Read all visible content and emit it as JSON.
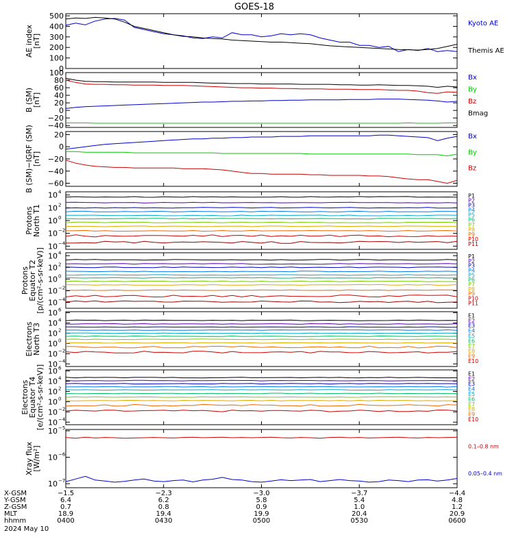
{
  "title": "GOES-18",
  "chart_data": [
    {
      "type": "line",
      "ylabel": [
        "AE index",
        "[nT]"
      ],
      "yticks": [
        "500",
        "400",
        "300",
        "200",
        "100",
        "0"
      ],
      "ylim": [
        0,
        520
      ],
      "x": [
        "0400",
        "0403",
        "0406",
        "0409",
        "0412",
        "0415",
        "0418",
        "0421",
        "0424",
        "0427",
        "0430",
        "0433",
        "0436",
        "0439",
        "0442",
        "0445",
        "0448",
        "0451",
        "0454",
        "0457",
        "0500",
        "0503",
        "0506",
        "0509",
        "0512",
        "0515",
        "0518",
        "0521",
        "0524",
        "0527",
        "0530",
        "0533",
        "0536",
        "0539",
        "0542",
        "0545",
        "0548",
        "0551",
        "0554",
        "0557",
        "0600"
      ],
      "series": [
        {
          "name": "Kyoto AE",
          "color": "#0000cc",
          "values": [
            410,
            430,
            415,
            450,
            470,
            475,
            460,
            390,
            370,
            350,
            330,
            320,
            310,
            290,
            285,
            300,
            290,
            340,
            320,
            320,
            300,
            310,
            330,
            320,
            330,
            320,
            290,
            270,
            250,
            250,
            220,
            220,
            200,
            210,
            160,
            180,
            170,
            190,
            160,
            170,
            160
          ]
        },
        {
          "name": "Themis AE",
          "color": "#000000",
          "values": [
            470,
            480,
            475,
            485,
            480,
            470,
            440,
            400,
            380,
            360,
            340,
            320,
            305,
            300,
            290,
            285,
            280,
            270,
            265,
            260,
            255,
            250,
            250,
            245,
            240,
            235,
            225,
            215,
            210,
            205,
            200,
            195,
            190,
            185,
            180,
            178,
            175,
            180,
            190,
            210,
            230
          ]
        }
      ]
    },
    {
      "type": "line",
      "ylabel": [
        "B (SM)",
        "[nT]"
      ],
      "yticks": [
        "100",
        "80",
        "60",
        "40",
        "20",
        "0",
        "−20",
        "−40"
      ],
      "ylim": [
        -45,
        100
      ],
      "series": [
        {
          "name": "Bx",
          "color": "#0000cc",
          "values": [
            5,
            8,
            10,
            11,
            12,
            13,
            14,
            15,
            16,
            17,
            18,
            19,
            20,
            21,
            22,
            22,
            23,
            24,
            24,
            25,
            25,
            26,
            26,
            27,
            27,
            28,
            28,
            28,
            28,
            29,
            29,
            29,
            30,
            30,
            30,
            29,
            28,
            27,
            25,
            22,
            24
          ]
        },
        {
          "name": "By",
          "color": "#00cc00",
          "values": [
            -33,
            -33,
            -33,
            -34,
            -34,
            -34,
            -34,
            -34,
            -34,
            -34,
            -34,
            -34,
            -34,
            -34,
            -34,
            -34,
            -34,
            -34,
            -34,
            -34,
            -34,
            -34,
            -34,
            -34,
            -34,
            -34,
            -34,
            -34,
            -34,
            -34,
            -34,
            -34,
            -34,
            -34,
            -34,
            -33,
            -34,
            -34,
            -34,
            -33,
            -33
          ]
        },
        {
          "name": "Bz",
          "color": "#cc0000",
          "values": [
            80,
            74,
            70,
            69,
            69,
            68,
            68,
            67,
            67,
            67,
            66,
            66,
            66,
            65,
            64,
            63,
            62,
            61,
            60,
            60,
            59,
            59,
            58,
            58,
            57,
            57,
            57,
            56,
            56,
            56,
            55,
            55,
            55,
            54,
            53,
            53,
            51,
            47,
            45,
            49,
            48
          ]
        },
        {
          "name": "Bmag",
          "color": "#000000",
          "values": [
            85,
            80,
            77,
            76,
            76,
            75,
            75,
            75,
            75,
            75,
            74,
            74,
            74,
            74,
            73,
            72,
            72,
            71,
            71,
            71,
            70,
            70,
            70,
            70,
            69,
            69,
            69,
            69,
            68,
            68,
            67,
            67,
            68,
            67,
            66,
            66,
            65,
            64,
            61,
            64,
            62
          ]
        }
      ]
    },
    {
      "type": "line",
      "ylabel": [
        "B (SM)−IGRF (SM)",
        "[nT]"
      ],
      "yticks": [
        "20",
        "0",
        "−20",
        "−40",
        "−60"
      ],
      "ylim": [
        -65,
        25
      ],
      "series": [
        {
          "name": "Bx",
          "color": "#0000cc",
          "values": [
            -4,
            -2,
            0,
            2,
            4,
            5,
            6,
            7,
            8,
            9,
            10,
            11,
            12,
            13,
            13,
            14,
            14,
            15,
            15,
            16,
            16,
            16,
            17,
            17,
            17,
            18,
            18,
            18,
            18,
            18,
            18,
            18,
            19,
            19,
            18,
            17,
            16,
            15,
            10,
            14,
            17
          ]
        },
        {
          "name": "By",
          "color": "#00cc00",
          "values": [
            -8,
            -8,
            -9,
            -9,
            -9,
            -9,
            -9,
            -10,
            -10,
            -10,
            -10,
            -10,
            -10,
            -10,
            -10,
            -10,
            -11,
            -11,
            -11,
            -11,
            -11,
            -11,
            -11,
            -11,
            -11,
            -12,
            -12,
            -12,
            -12,
            -12,
            -12,
            -12,
            -12,
            -12,
            -12,
            -12,
            -13,
            -13,
            -13,
            -15,
            -12
          ]
        },
        {
          "name": "Bz",
          "color": "#cc0000",
          "values": [
            -22,
            -27,
            -30,
            -32,
            -33,
            -34,
            -34,
            -35,
            -35,
            -35,
            -35,
            -35,
            -36,
            -36,
            -36,
            -37,
            -38,
            -40,
            -42,
            -44,
            -44,
            -45,
            -45,
            -45,
            -45,
            -46,
            -46,
            -47,
            -47,
            -47,
            -47,
            -48,
            -48,
            -49,
            -51,
            -53,
            -54,
            -54,
            -57,
            -60,
            -55
          ]
        }
      ]
    },
    {
      "type": "line",
      "log": true,
      "ylabel": [
        "Protons",
        "North T1"
      ],
      "yticks": [
        [
          4,
          "10"
        ],
        [
          2,
          "10"
        ],
        [
          0,
          "10"
        ],
        [
          -2,
          "10"
        ],
        [
          -4,
          "10"
        ]
      ],
      "ylim": [
        -4.5,
        4.5
      ],
      "series": [
        {
          "name": "P1",
          "color": "#000000",
          "level": 3.7
        },
        {
          "name": "P2",
          "color": "#5500aa",
          "level": 2.8
        },
        {
          "name": "P3",
          "color": "#0000cc",
          "level": 2.0
        },
        {
          "name": "P4",
          "color": "#0077ee",
          "level": 1.4
        },
        {
          "name": "P5",
          "color": "#00aacc",
          "level": 0.8
        },
        {
          "name": "P6",
          "color": "#00bb66",
          "level": 0.3
        },
        {
          "name": "P7",
          "color": "#77cc00",
          "level": -0.3
        },
        {
          "name": "P8",
          "color": "#ddaa00",
          "level": -0.9
        },
        {
          "name": "P9",
          "color": "#ee6600",
          "level": -1.6
        },
        {
          "name": "P10",
          "color": "#cc0000",
          "level": -2.4
        },
        {
          "name": "P11",
          "color": "#990000",
          "level": -3.4
        }
      ]
    },
    {
      "type": "line",
      "log": true,
      "ylabel": [
        "Protons",
        "Equator T2",
        "[p/(cm²-s-sr-keV)]"
      ],
      "yticks": [
        [
          4,
          "10"
        ],
        [
          2,
          "10"
        ],
        [
          0,
          "10"
        ],
        [
          -2,
          "10"
        ],
        [
          -4,
          "10"
        ]
      ],
      "ylim": [
        -5,
        4.5
      ],
      "series": [
        {
          "name": "P1",
          "color": "#000000",
          "level": 3.3
        },
        {
          "name": "P2",
          "color": "#5500aa",
          "level": 2.6
        },
        {
          "name": "P3",
          "color": "#0000cc",
          "level": 2.0
        },
        {
          "name": "P4",
          "color": "#0077ee",
          "level": 1.3
        },
        {
          "name": "P5",
          "color": "#00aacc",
          "level": 0.7
        },
        {
          "name": "P6",
          "color": "#00bb66",
          "level": 0.2
        },
        {
          "name": "P7",
          "color": "#77cc00",
          "level": -0.4
        },
        {
          "name": "P8",
          "color": "#ddaa00",
          "level": -1.0
        },
        {
          "name": "P9",
          "color": "#ee6600",
          "level": -1.9
        },
        {
          "name": "P10",
          "color": "#cc0000",
          "level": -2.9
        },
        {
          "name": "P11",
          "color": "#990000",
          "level": -3.9
        }
      ]
    },
    {
      "type": "line",
      "log": true,
      "ylabel": [
        "Electrons",
        "North T3"
      ],
      "yticks": [
        [
          6,
          "10"
        ],
        [
          4,
          "10"
        ],
        [
          2,
          "10"
        ],
        [
          0,
          "10"
        ],
        [
          -2,
          "10"
        ],
        [
          -4,
          "10"
        ]
      ],
      "ylim": [
        -4.5,
        6.2
      ],
      "series": [
        {
          "name": "E1",
          "color": "#000000",
          "level": 4.5
        },
        {
          "name": "E2",
          "color": "#5500aa",
          "level": 3.8
        },
        {
          "name": "E3",
          "color": "#0000cc",
          "level": 3.2
        },
        {
          "name": "E4",
          "color": "#0077ee",
          "level": 2.6
        },
        {
          "name": "E5",
          "color": "#00aacc",
          "level": 2.0
        },
        {
          "name": "E6",
          "color": "#00bb66",
          "level": 1.4
        },
        {
          "name": "E7",
          "color": "#77cc00",
          "level": 0.8
        },
        {
          "name": "E8",
          "color": "#ddaa00",
          "level": 0.1
        },
        {
          "name": "E9",
          "color": "#ee6600",
          "level": -0.7
        },
        {
          "name": "E10",
          "color": "#cc0000",
          "level": -1.7
        }
      ]
    },
    {
      "type": "line",
      "log": true,
      "ylabel": [
        "Electrons",
        "Equator T4",
        "[e/(cm²-s-sr-keV)]"
      ],
      "yticks": [
        [
          6,
          "10"
        ],
        [
          4,
          "10"
        ],
        [
          2,
          "10"
        ],
        [
          0,
          "10"
        ],
        [
          -2,
          "10"
        ],
        [
          -4,
          "10"
        ]
      ],
      "ylim": [
        -4.5,
        6.2
      ],
      "series": [
        {
          "name": "E1",
          "color": "#000000",
          "level": 4.7
        },
        {
          "name": "E2",
          "color": "#5500aa",
          "level": 4.1
        },
        {
          "name": "E3",
          "color": "#0000cc",
          "level": 3.5
        },
        {
          "name": "E4",
          "color": "#0077ee",
          "level": 2.9
        },
        {
          "name": "E5",
          "color": "#00aacc",
          "level": 2.3
        },
        {
          "name": "E6",
          "color": "#00bb66",
          "level": 1.6
        },
        {
          "name": "E7",
          "color": "#77cc00",
          "level": 0.9
        },
        {
          "name": "E8",
          "color": "#ddaa00",
          "level": 0.2
        },
        {
          "name": "E9",
          "color": "#ee6600",
          "level": -0.7
        },
        {
          "name": "E10",
          "color": "#cc0000",
          "level": -1.8
        }
      ]
    },
    {
      "type": "line",
      "log": true,
      "ylabel": [
        "Xray flux",
        "[W/m²]"
      ],
      "yticks": [
        [
          -5,
          "10"
        ],
        [
          -6,
          "10"
        ],
        [
          -7,
          "10"
        ]
      ],
      "ylim": [
        -7.15,
        -4.95
      ],
      "series": [
        {
          "name": "0.1–0.8 nm",
          "color": "#cc0000",
          "values": [
            -5.25,
            -5.28,
            -5.24,
            -5.27,
            -5.25,
            -5.26,
            -5.28,
            -5.27,
            -5.26,
            -5.25,
            -5.26,
            -5.27,
            -5.25,
            -5.24,
            -5.26,
            -5.25,
            -5.24,
            -5.26,
            -5.25,
            -5.26,
            -5.25,
            -5.24,
            -5.26,
            -5.27,
            -5.25,
            -5.26,
            -5.28,
            -5.25,
            -5.24,
            -5.26,
            -5.25,
            -5.27,
            -5.26,
            -5.25,
            -5.24,
            -5.26,
            -5.27,
            -5.25,
            -5.26,
            -5.25,
            -5.24
          ]
        },
        {
          "name": "0.05–0.4 nm",
          "color": "#0000cc",
          "values": [
            -6.92,
            -6.82,
            -6.72,
            -6.86,
            -6.9,
            -6.94,
            -6.91,
            -6.86,
            -6.82,
            -6.9,
            -6.92,
            -6.88,
            -6.86,
            -6.93,
            -6.86,
            -6.83,
            -6.76,
            -6.84,
            -6.86,
            -6.92,
            -6.94,
            -6.9,
            -6.85,
            -6.88,
            -6.86,
            -6.84,
            -6.92,
            -6.88,
            -6.84,
            -6.88,
            -6.9,
            -6.94,
            -6.92,
            -6.86,
            -6.88,
            -6.92,
            -6.86,
            -6.85,
            -6.9,
            -6.86,
            -6.8
          ]
        }
      ]
    }
  ],
  "footer": {
    "rows": [
      {
        "label": "X-GSM",
        "values": [
          "−1.5",
          "−2.3",
          "−3.0",
          "−3.7",
          "−4.4"
        ]
      },
      {
        "label": "Y-GSM",
        "values": [
          "6.4",
          "6.2",
          "5.8",
          "5.4",
          "4.8"
        ]
      },
      {
        "label": "Z-GSM",
        "values": [
          "0.7",
          "0.8",
          "0.9",
          "1.0",
          "1.2"
        ]
      },
      {
        "label": "MLT",
        "values": [
          "18.9",
          "19.4",
          "19.9",
          "20.4",
          "20.9"
        ]
      },
      {
        "label": "hhmm",
        "values": [
          "0400",
          "0430",
          "0500",
          "0530",
          "0600"
        ]
      }
    ],
    "date": "2024 May 10"
  }
}
